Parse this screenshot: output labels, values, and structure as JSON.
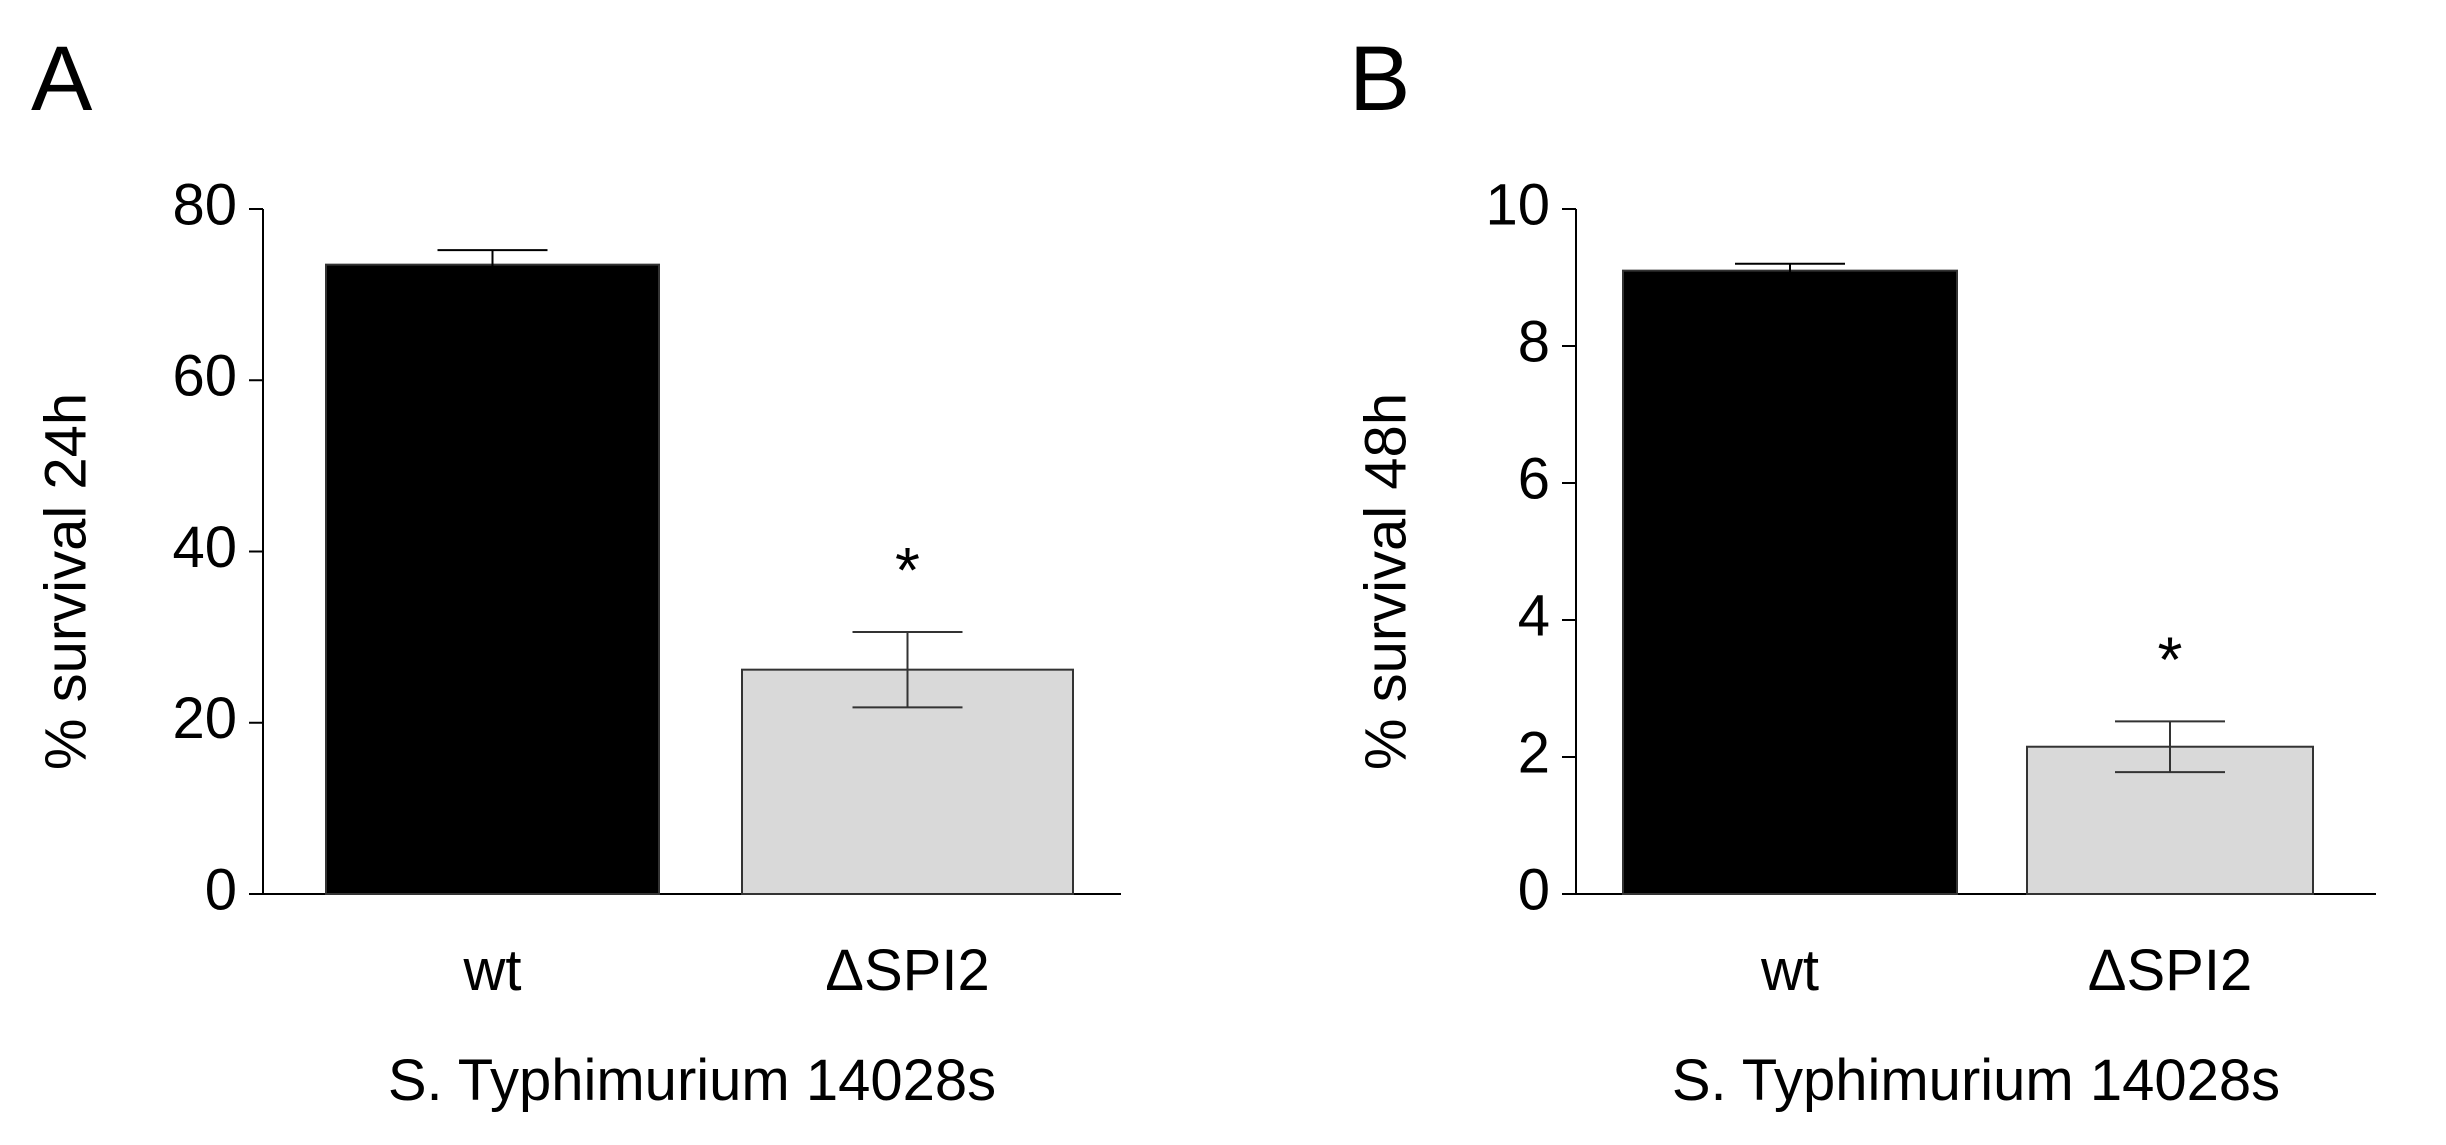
{
  "chart_data": [
    {
      "type": "bar",
      "panel": "A",
      "ylabel": "% survival 24h",
      "xlabel": "S. Typhimurium 14028s",
      "categories": [
        "wt",
        "ΔSPI2"
      ],
      "values": [
        73.5,
        26.2
      ],
      "errors": [
        1.7,
        4.4
      ],
      "colors": [
        "#000000",
        "#d9d9d9"
      ],
      "annotation": "*",
      "ylim": [
        0,
        80
      ],
      "yticks": [
        0,
        20,
        40,
        60,
        80
      ]
    },
    {
      "type": "bar",
      "panel": "B",
      "ylabel": "% survival 48h",
      "xlabel": "S. Typhimurium 14028s",
      "categories": [
        "wt",
        "ΔSPI2"
      ],
      "values": [
        9.1,
        2.15
      ],
      "errors": [
        0.1,
        0.37
      ],
      "colors": [
        "#000000",
        "#d9d9d9"
      ],
      "annotation": "*",
      "ylim": [
        0,
        10
      ],
      "yticks": [
        0,
        2,
        4,
        6,
        8,
        10
      ]
    }
  ]
}
